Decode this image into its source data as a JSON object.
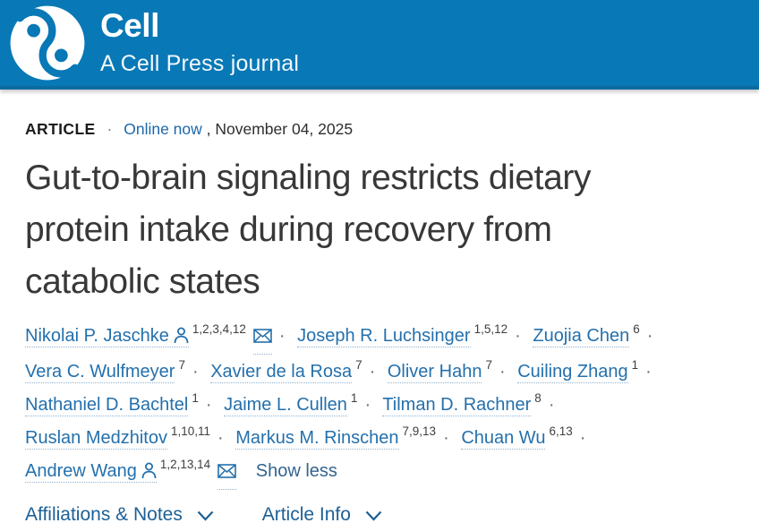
{
  "header": {
    "journal_name": "Cell",
    "tagline": "A Cell Press journal"
  },
  "colors": {
    "header_bg": "#0878b6",
    "header_border": "#0b6ba1",
    "author_link_blue": "#2470ac",
    "online_now_blue": "#1b67a9",
    "footer_link_blue": "#1d6096",
    "title_gray": "#383838"
  },
  "meta": {
    "article_type": "ARTICLE",
    "separator": "·",
    "online_link": "Online now",
    "date_text": ", November 04, 2025"
  },
  "title_lines": [
    "Gut-to-brain signaling restricts dietary",
    "protein intake during recovery from",
    "catabolic states"
  ],
  "authors": {
    "separator": "·",
    "show_less": "Show less",
    "list": [
      {
        "name": "Nikolai P. Jaschke",
        "sup": "1,2,3,4,12",
        "person_icon": true,
        "envelope": true,
        "trailing_sep": true
      },
      {
        "name": "Joseph R. Luchsinger",
        "sup": "1,5,12",
        "person_icon": false,
        "envelope": false,
        "trailing_sep": true
      },
      {
        "name": "Zuojia Chen",
        "sup": "6",
        "person_icon": false,
        "envelope": false,
        "trailing_sep": true
      },
      {
        "name": "Vera C. Wulfmeyer",
        "sup": "7",
        "person_icon": false,
        "envelope": false,
        "trailing_sep": true
      },
      {
        "name": "Xavier de la Rosa",
        "sup": "7",
        "person_icon": false,
        "envelope": false,
        "trailing_sep": true
      },
      {
        "name": "Oliver Hahn",
        "sup": "7",
        "person_icon": false,
        "envelope": false,
        "trailing_sep": true
      },
      {
        "name": "Cuiling Zhang",
        "sup": "1",
        "person_icon": false,
        "envelope": false,
        "trailing_sep": true
      },
      {
        "name": "Nathaniel D. Bachtel",
        "sup": "1",
        "person_icon": false,
        "envelope": false,
        "trailing_sep": true
      },
      {
        "name": "Jaime L. Cullen",
        "sup": "1",
        "person_icon": false,
        "envelope": false,
        "trailing_sep": true
      },
      {
        "name": "Tilman D. Rachner",
        "sup": "8",
        "person_icon": false,
        "envelope": false,
        "trailing_sep": true
      },
      {
        "name": "Ruslan Medzhitov",
        "sup": "1,10,11",
        "person_icon": false,
        "envelope": false,
        "trailing_sep": true
      },
      {
        "name": "Markus M. Rinschen",
        "sup": "7,9,13",
        "person_icon": false,
        "envelope": false,
        "trailing_sep": true
      },
      {
        "name": "Chuan Wu",
        "sup": "6,13",
        "person_icon": false,
        "envelope": false,
        "trailing_sep": true
      },
      {
        "name": "Andrew Wang",
        "sup": "1,2,13,14",
        "person_icon": true,
        "envelope": true,
        "trailing_sep": false
      }
    ]
  },
  "footer": {
    "links": [
      {
        "label": "Affiliations & Notes"
      },
      {
        "label": "Article Info"
      }
    ]
  }
}
